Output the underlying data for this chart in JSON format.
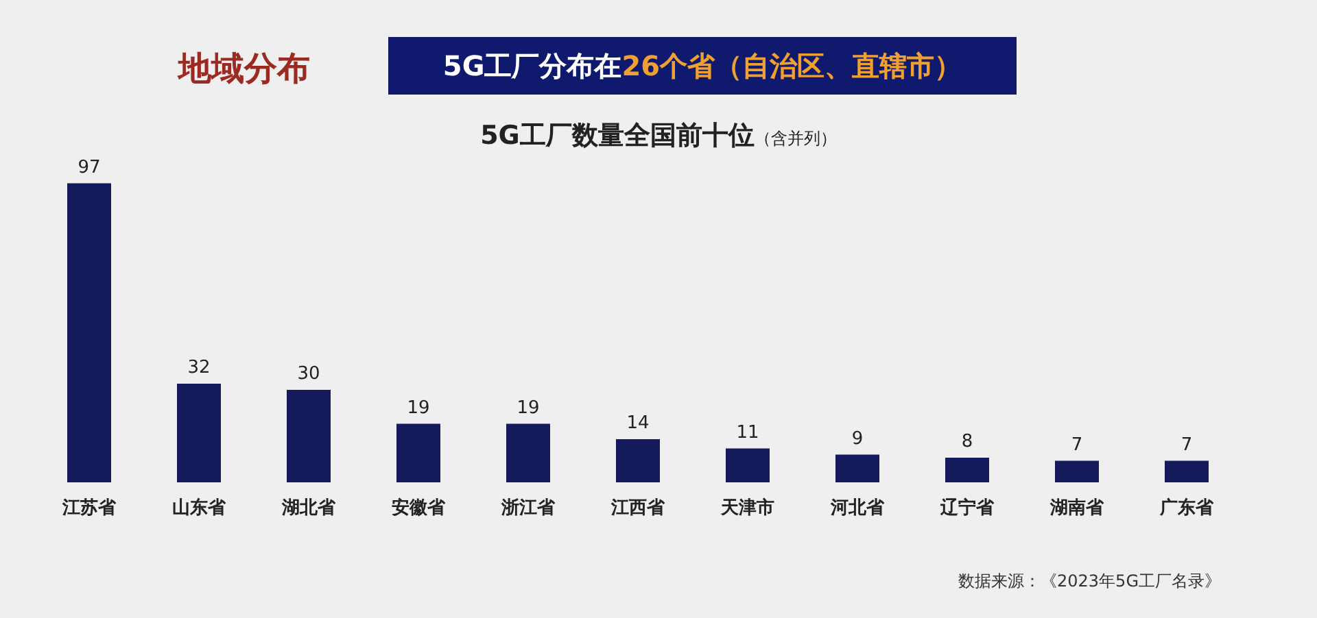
{
  "chart_data": {
    "type": "bar",
    "title": "5G工厂数量全国前十位",
    "subtitle": "（含并列）",
    "annotations": [
      "地域分布",
      "5G工厂分布在",
      "26个省（自治区、直辖市）",
      "数据来源：《2023年5G工厂名录》"
    ],
    "categories": [
      "江苏省",
      "山东省",
      "湖北省",
      "安徽省",
      "浙江省",
      "江西省",
      "天津市",
      "河北省",
      "辽宁省",
      "湖南省",
      "广东省"
    ],
    "values": [
      97,
      32,
      30,
      19,
      19,
      14,
      11,
      9,
      8,
      7,
      7
    ],
    "color": "#141a5c",
    "data_labels": true
  }
}
